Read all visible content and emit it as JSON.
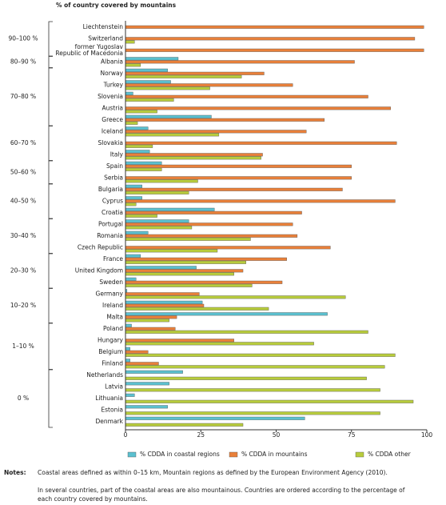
{
  "chart_data": {
    "type": "bar",
    "orientation": "horizontal",
    "title": "% of country covered by mountains",
    "groups": [
      {
        "label": "90–100 %",
        "categories": [
          "Liechtenstein",
          "Switzerland",
          "former Yugoslav\nRepublic of Macedonia"
        ]
      },
      {
        "label": "80–90 %",
        "categories": [
          "Albania"
        ]
      },
      {
        "label": "70–80 %",
        "categories": [
          "Norway",
          "Turkey",
          "Slovenia",
          "Austria",
          "Greece"
        ]
      },
      {
        "label": "60–70 %",
        "categories": [
          "Iceland",
          "Slovakia",
          "Italy"
        ]
      },
      {
        "label": "50–60 %",
        "categories": [
          "Spain",
          "Serbia"
        ]
      },
      {
        "label": "40–50 %",
        "categories": [
          "Bulgaria",
          "Cyprus",
          "Croatia"
        ]
      },
      {
        "label": "30–40 %",
        "categories": [
          "Portugal",
          "Romania",
          "Czech Republic"
        ]
      },
      {
        "label": "20–30 %",
        "categories": [
          "France",
          "United Kingdom",
          "Sweden"
        ]
      },
      {
        "label": "10–20 %",
        "categories": [
          "Germany",
          "Ireland",
          "Malta"
        ]
      },
      {
        "label": "1–10 %",
        "categories": [
          "Poland",
          "Hungary",
          "Belgium",
          "Finland"
        ]
      },
      {
        "label": "0 %",
        "categories": [
          "Netherlands",
          "Latvia",
          "Lithuania",
          "Estonia",
          "Denmark"
        ]
      }
    ],
    "series": [
      {
        "name": "% CDDA in coastal regions",
        "color": "#5bc0cf",
        "values": [
          0,
          0,
          0,
          17.5,
          14,
          15,
          2.5,
          0,
          28.5,
          7.5,
          0,
          8,
          12,
          0,
          5.5,
          5.5,
          29.5,
          21,
          7.5,
          0,
          5,
          23.5,
          3.5,
          0.5,
          25.5,
          67,
          2,
          0,
          1.5,
          1.5,
          19,
          14.5,
          3,
          14,
          59.5
        ]
      },
      {
        "name": "% CDDA in mountains",
        "color": "#e9803a",
        "values": [
          99,
          96,
          99,
          76,
          46,
          55.5,
          80.5,
          88,
          66,
          60,
          90,
          45.5,
          75,
          75,
          72,
          89.5,
          58.5,
          55.5,
          57,
          68,
          53.5,
          39,
          52,
          24.5,
          26,
          17,
          16.5,
          36,
          7.5,
          11,
          0,
          0,
          0,
          0,
          0
        ]
      },
      {
        "name": "% CDDA other",
        "color": "#b8cc3c",
        "values": [
          0,
          3,
          0,
          5,
          38.5,
          28,
          16,
          10.5,
          4,
          31,
          9,
          45,
          12,
          24,
          21,
          3.5,
          10.5,
          22,
          41.5,
          30.5,
          40,
          36,
          42,
          73,
          47.5,
          14.5,
          80.5,
          62.5,
          89.5,
          86,
          80,
          84.5,
          95.5,
          84.5,
          39
        ]
      }
    ],
    "xlim": [
      0,
      100
    ],
    "xticks": [
      0,
      25,
      50,
      75,
      100
    ],
    "notes": {
      "label": "Notes:",
      "lines": [
        "Coastal areas defined as within 0–15 km, Mountain regions as defined by the European Environment Agency (2010).",
        "In several countries, part of the coastal areas are also mountainous. Countries are ordered according to the percentage of",
        "each country covered by mountains."
      ]
    }
  }
}
